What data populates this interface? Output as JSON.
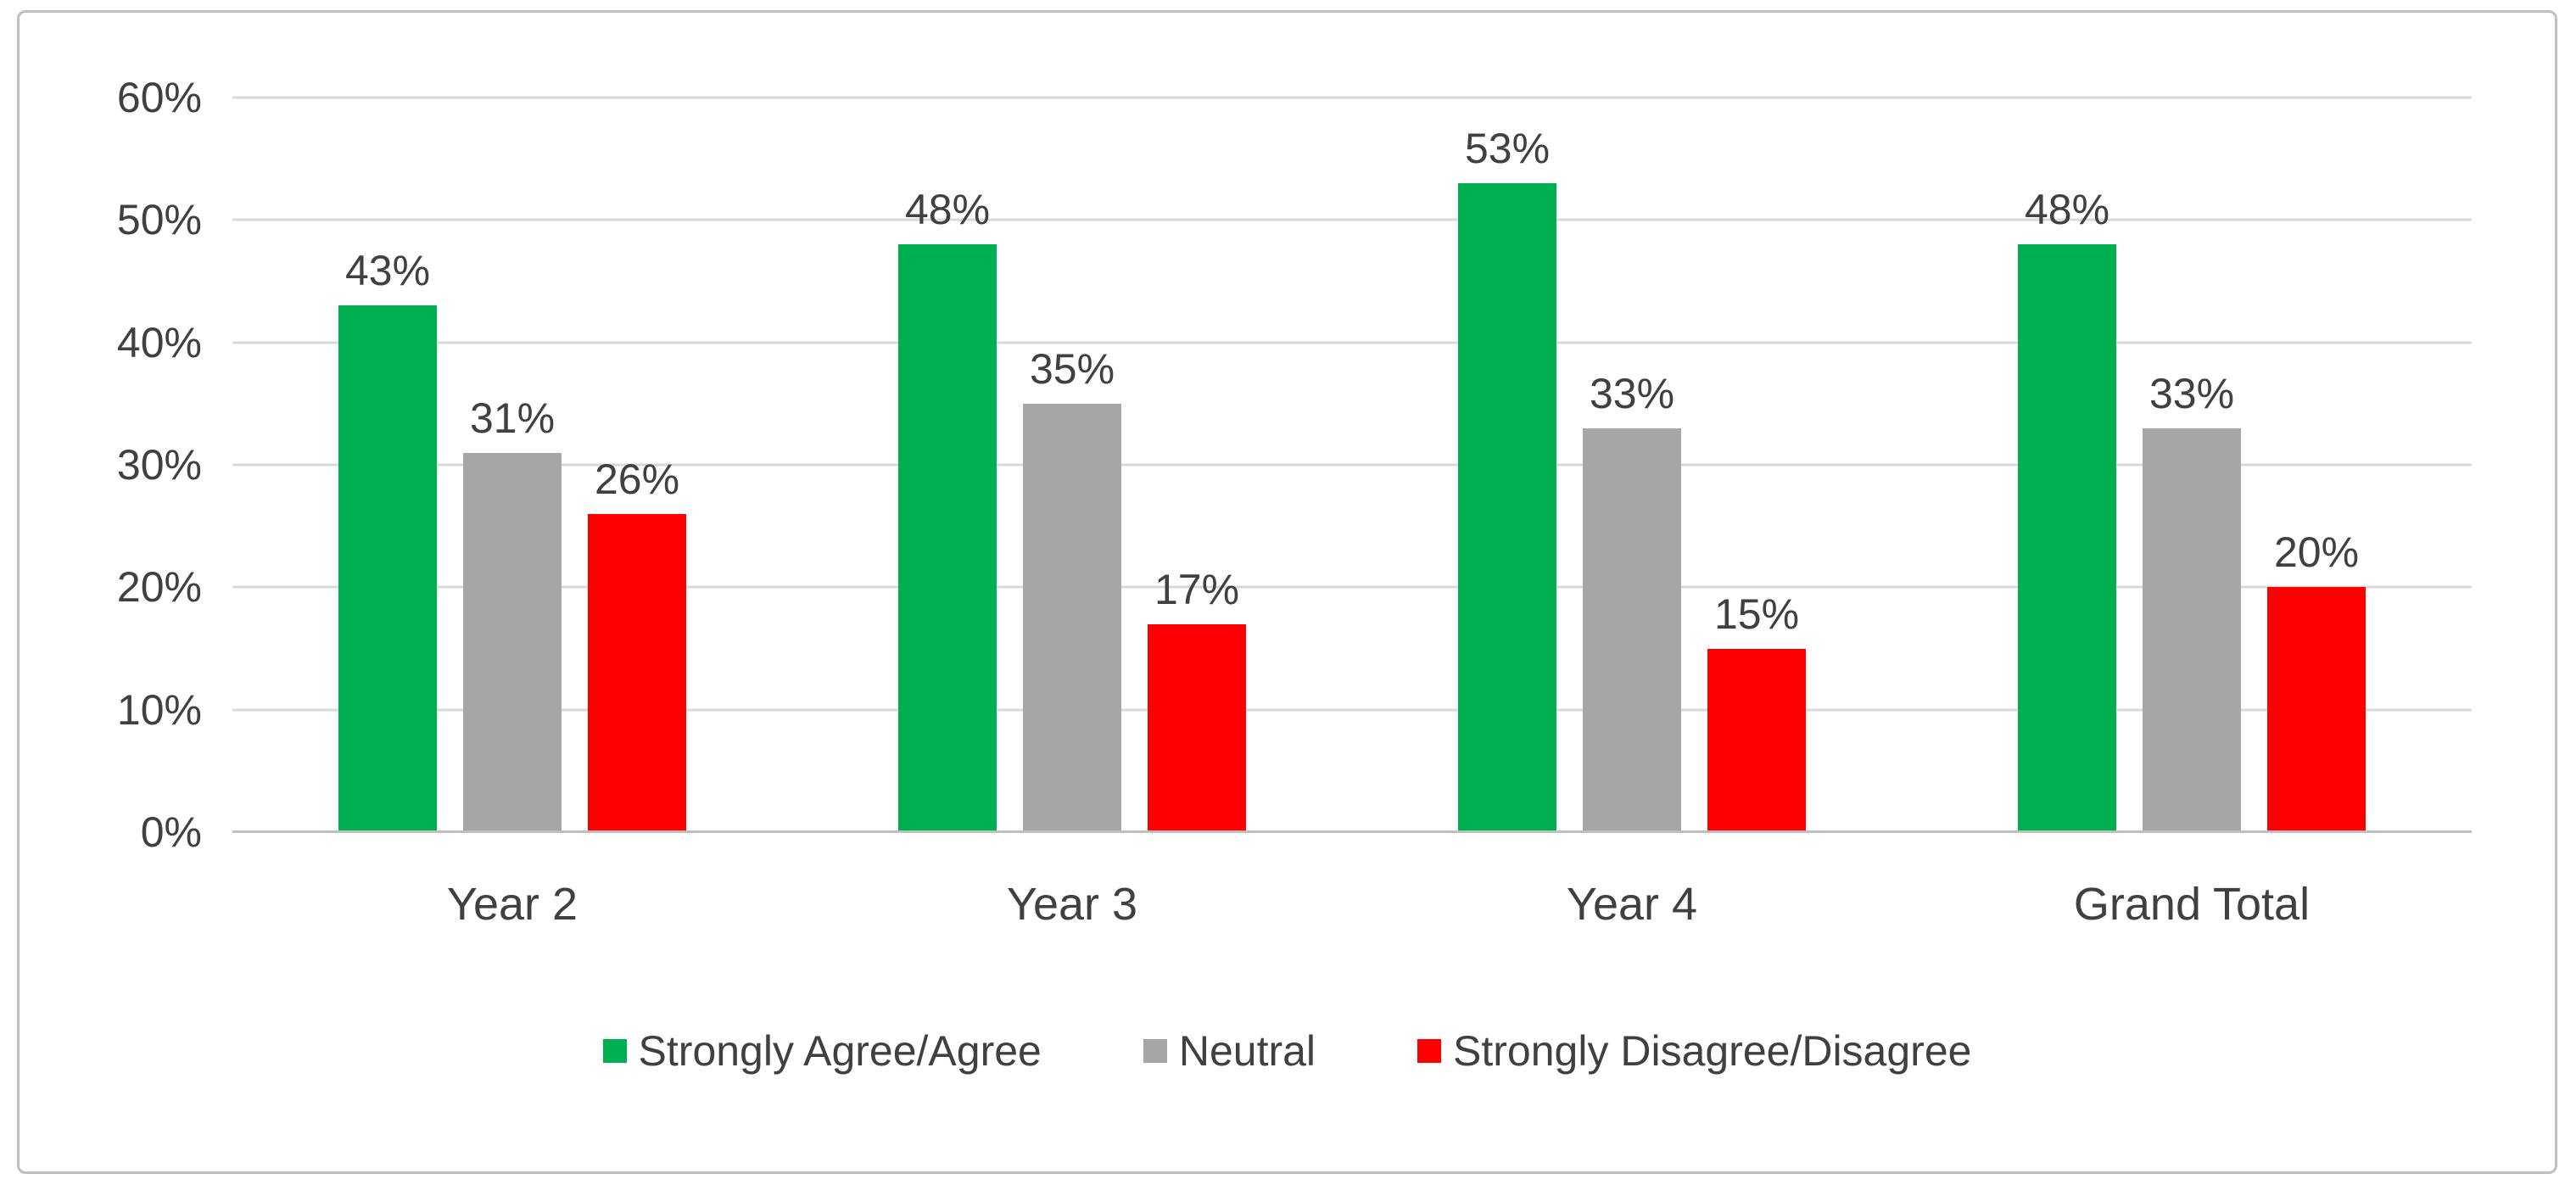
{
  "chart_data": {
    "type": "bar",
    "categories": [
      "Year 2",
      "Year 3",
      "Year 4",
      "Grand Total"
    ],
    "series": [
      {
        "name": "Strongly Agree/Agree",
        "color": "#00B050",
        "values": [
          43,
          48,
          53,
          48
        ],
        "labels": [
          "43%",
          "48%",
          "53%",
          "48%"
        ]
      },
      {
        "name": "Neutral",
        "color": "#A6A6A6",
        "values": [
          31,
          35,
          33,
          33
        ],
        "labels": [
          "31%",
          "35%",
          "33%",
          "33%"
        ]
      },
      {
        "name": "Strongly Disagree/Disagree",
        "color": "#FF0000",
        "values": [
          26,
          17,
          15,
          20
        ],
        "labels": [
          "26%",
          "17%",
          "15%",
          "20%"
        ]
      }
    ],
    "title": "",
    "xlabel": "",
    "ylabel": "",
    "ylim": [
      0,
      60
    ],
    "ytick_step": 10,
    "ytick_labels": [
      "0%",
      "10%",
      "20%",
      "30%",
      "40%",
      "50%",
      "60%"
    ],
    "grid": true,
    "legend_position": "bottom"
  }
}
